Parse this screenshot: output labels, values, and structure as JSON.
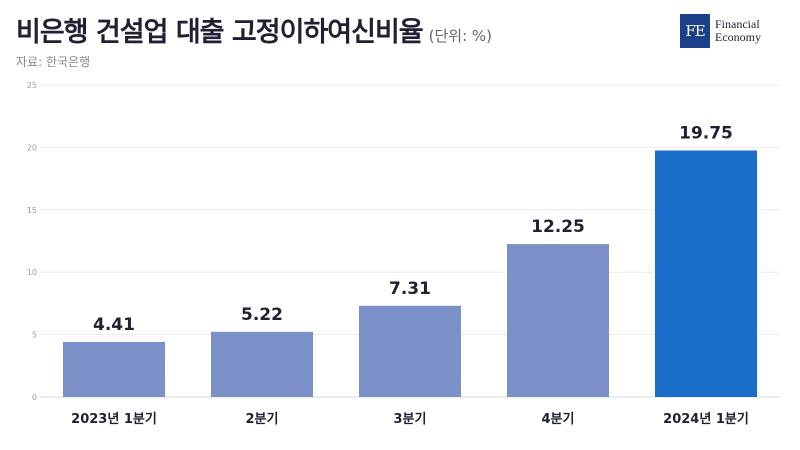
{
  "header": {
    "title": "비은행 건설업 대출 고정이하여신비율",
    "unit": "(단위: %)",
    "source": "자료: 한국은행"
  },
  "logo": {
    "mark": "FE",
    "line1": "Financial",
    "line2": "Economy"
  },
  "chart_data": {
    "type": "bar",
    "categories": [
      "2023년 1분기",
      "2분기",
      "3분기",
      "4분기",
      "2024년 1분기"
    ],
    "values": [
      4.41,
      5.22,
      7.31,
      12.25,
      19.75
    ],
    "value_labels": [
      "4.41",
      "5.22",
      "7.31",
      "12.25",
      "19.75"
    ],
    "ylim": [
      0,
      25
    ],
    "yticks": [
      0,
      5,
      10,
      15,
      20,
      25
    ],
    "grid": true,
    "colors": [
      "#7b8fc8",
      "#7b8fc8",
      "#7b8fc8",
      "#7b8fc8",
      "#1a6ec9"
    ]
  }
}
